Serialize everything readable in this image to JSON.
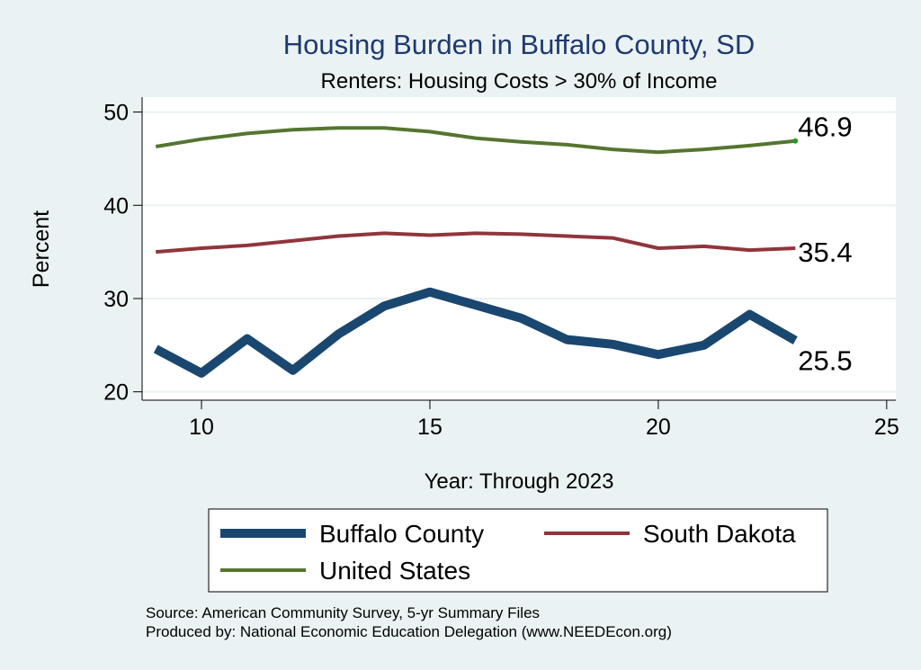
{
  "chart_data": {
    "type": "line",
    "title": "Housing Burden in Buffalo County, SD",
    "subtitle": "Renters: Housing Costs > 30% of Income",
    "xlabel": "Year: Through 2023",
    "ylabel": "Percent",
    "xlim": [
      8.7,
      25.2
    ],
    "ylim": [
      19.1,
      51.6
    ],
    "xticks": [
      10,
      15,
      20,
      25
    ],
    "yticks": [
      20,
      30,
      40,
      50
    ],
    "grid": true,
    "x": [
      9,
      10,
      11,
      12,
      13,
      14,
      15,
      16,
      17,
      18,
      19,
      20,
      21,
      22,
      23
    ],
    "series": [
      {
        "name": "Buffalo County",
        "color": "#1a476f",
        "thick": true,
        "values": [
          24.6,
          22.0,
          25.7,
          22.3,
          26.2,
          29.2,
          30.7,
          29.3,
          27.9,
          25.6,
          25.1,
          24.0,
          25.0,
          28.3,
          25.5
        ],
        "end_label": "25.5"
      },
      {
        "name": "South Dakota",
        "color": "#90353b",
        "thick": false,
        "values": [
          35.0,
          35.4,
          35.7,
          36.2,
          36.7,
          37.0,
          36.8,
          37.0,
          36.9,
          36.7,
          36.5,
          35.4,
          35.6,
          35.2,
          35.4
        ],
        "end_label": "35.4"
      },
      {
        "name": "United States",
        "color": "#55752f",
        "thick": false,
        "values": [
          46.3,
          47.1,
          47.7,
          48.1,
          48.3,
          48.3,
          47.9,
          47.2,
          46.8,
          46.5,
          46.0,
          45.7,
          46.0,
          46.4,
          46.9
        ],
        "end_label": "46.9"
      }
    ],
    "legend": {
      "position": "bottom",
      "entries": [
        "Buffalo County",
        "South Dakota",
        "United States"
      ]
    },
    "notes": [
      "Source: American Community Survey, 5-yr Summary Files",
      "Produced by: National Economic Education Delegation (www.NEEDEcon.org)"
    ]
  }
}
